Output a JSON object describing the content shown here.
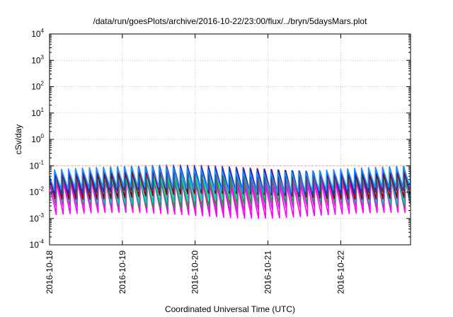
{
  "chart_data": {
    "type": "line",
    "title": "/data/run/goesPlots/archive/2016-10-22/23:00/flux/../bryn/5daysMars.plot",
    "xlabel": "Coordinated Universal Time (UTC)",
    "ylabel": "cSv/day",
    "yscale": "log",
    "ylim": [
      0.0001,
      10000
    ],
    "xlim": [
      "2016-10-18T00:00",
      "2016-10-22T23:00"
    ],
    "grid": true,
    "legend": "none",
    "y_ticks": [
      {
        "base": "10",
        "exp": "-4",
        "value": 0.0001
      },
      {
        "base": "10",
        "exp": "-3",
        "value": 0.001
      },
      {
        "base": "10",
        "exp": "-2",
        "value": 0.01
      },
      {
        "base": "10",
        "exp": "-1",
        "value": 0.1
      },
      {
        "base": "10",
        "exp": "0",
        "value": 1
      },
      {
        "base": "10",
        "exp": "1",
        "value": 10
      },
      {
        "base": "10",
        "exp": "2",
        "value": 100
      },
      {
        "base": "10",
        "exp": "3",
        "value": 1000
      },
      {
        "base": "10",
        "exp": "4",
        "value": 10000
      }
    ],
    "x_ticks": [
      {
        "label": "2016-10-18",
        "value": "2016-10-18T00:00"
      },
      {
        "label": "2016-10-19",
        "value": "2016-10-19T00:00"
      },
      {
        "label": "2016-10-20",
        "value": "2016-10-20T00:00"
      },
      {
        "label": "2016-10-21",
        "value": "2016-10-21T00:00"
      },
      {
        "label": "2016-10-22",
        "value": "2016-10-22T00:00"
      }
    ],
    "reference_line": {
      "value": 0.1,
      "color": "#f4a582"
    },
    "sawtooth_period_hours": 2.3,
    "series": [
      {
        "color": "#ff00ff",
        "peak": 0.022,
        "trough": 0.0012
      },
      {
        "color": "#cc22cc",
        "peak": 0.03,
        "trough": 0.0022
      },
      {
        "color": "#1b9e3c",
        "peak": 0.04,
        "trough": 0.0032
      },
      {
        "color": "#00c8c8",
        "peak": 0.055,
        "trough": 0.0048
      },
      {
        "color": "#8b0000",
        "peak": 0.07,
        "trough": 0.007
      },
      {
        "color": "#2233cc",
        "peak": 0.085,
        "trough": 0.0095
      },
      {
        "color": "#1e90ff",
        "peak": 0.075,
        "trough": 0.012
      }
    ]
  }
}
